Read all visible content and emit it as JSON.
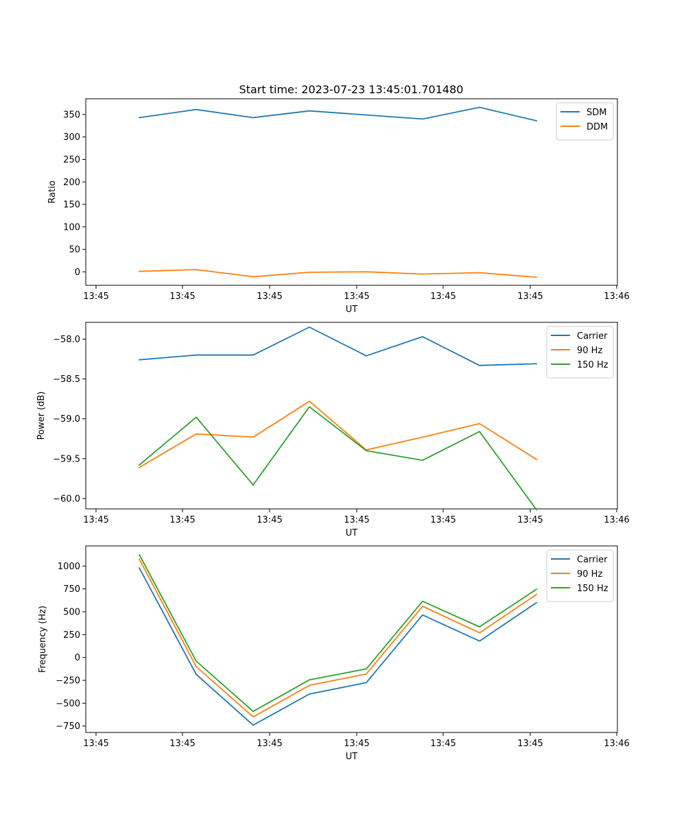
{
  "title": "Start time: 2023-07-23 13:45:01.701480",
  "chart_data": [
    {
      "type": "line",
      "title": "Start time: 2023-07-23 13:45:01.701480",
      "xlabel": "UT",
      "ylabel": "Ratio",
      "x_tick_labels": [
        "13:45",
        "13:45",
        "13:45",
        "13:45",
        "13:45",
        "13:45",
        "13:46"
      ],
      "x": [
        1,
        2,
        3,
        4,
        5,
        6,
        7,
        8
      ],
      "xlim": [
        0.8,
        9.2
      ],
      "ylim": [
        -30,
        385
      ],
      "yticks": [
        0,
        50,
        100,
        150,
        200,
        250,
        300,
        350
      ],
      "legend_position": "top-right",
      "series": [
        {
          "name": "SDM",
          "color": "#1f77b4",
          "values": [
            343,
            361,
            343,
            358,
            349,
            340,
            366,
            336
          ]
        },
        {
          "name": "DDM",
          "color": "#ff7f0e",
          "values": [
            1,
            5,
            -11,
            -1,
            0,
            -5,
            -2,
            -12
          ]
        }
      ]
    },
    {
      "type": "line",
      "xlabel": "UT",
      "ylabel": "Power (dB)",
      "x_tick_labels": [
        "13:45",
        "13:45",
        "13:45",
        "13:45",
        "13:45",
        "13:45",
        "13:46"
      ],
      "x": [
        1,
        2,
        3,
        4,
        5,
        6,
        7,
        8
      ],
      "xlim": [
        0.8,
        9.2
      ],
      "ylim": [
        -60.13,
        -57.79
      ],
      "yticks": [
        -60.0,
        -59.5,
        -59.0,
        -58.5,
        -58.0
      ],
      "ytick_labels": [
        "−60.0",
        "−59.5",
        "−59.0",
        "−58.5",
        "−58.0"
      ],
      "legend_position": "top-right",
      "series": [
        {
          "name": "Carrier",
          "color": "#1f77b4",
          "values": [
            -58.26,
            -58.2,
            -58.2,
            -57.85,
            -58.21,
            -57.97,
            -58.33,
            -58.31
          ]
        },
        {
          "name": "90 Hz",
          "color": "#ff7f0e",
          "values": [
            -59.61,
            -59.19,
            -59.23,
            -58.78,
            -59.39,
            -59.23,
            -59.06,
            -59.51
          ]
        },
        {
          "name": "150 Hz",
          "color": "#2ca02c",
          "values": [
            -59.58,
            -58.98,
            -59.83,
            -58.85,
            -59.4,
            -59.52,
            -59.16,
            -60.14
          ]
        }
      ]
    },
    {
      "type": "line",
      "xlabel": "UT",
      "ylabel": "Frequency (Hz)",
      "x_tick_labels": [
        "13:45",
        "13:45",
        "13:45",
        "13:45",
        "13:45",
        "13:45",
        "13:46"
      ],
      "x": [
        1,
        2,
        3,
        4,
        5,
        6,
        7,
        8
      ],
      "xlim": [
        0.8,
        9.2
      ],
      "ylim": [
        -820,
        1220
      ],
      "yticks": [
        -750,
        -500,
        -250,
        0,
        250,
        500,
        750,
        1000
      ],
      "ytick_labels": [
        "−750",
        "−500",
        "−250",
        "0",
        "250",
        "500",
        "750",
        "1000"
      ],
      "legend_position": "top-right",
      "series": [
        {
          "name": "Carrier",
          "color": "#1f77b4",
          "values": [
            980,
            -185,
            -740,
            -400,
            -275,
            465,
            180,
            600
          ]
        },
        {
          "name": "90 Hz",
          "color": "#ff7f0e",
          "values": [
            1075,
            -100,
            -650,
            -305,
            -180,
            560,
            270,
            690
          ]
        },
        {
          "name": "150 Hz",
          "color": "#2ca02c",
          "values": [
            1125,
            -40,
            -590,
            -245,
            -125,
            615,
            335,
            745
          ]
        }
      ]
    }
  ]
}
